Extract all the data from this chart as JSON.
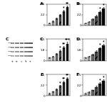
{
  "panels": {
    "A_bar": {
      "label": "A",
      "values": [
        0.5,
        0.9,
        1.5,
        2.2,
        3.0,
        3.8
      ],
      "errors": [
        0.08,
        0.1,
        0.15,
        0.2,
        0.25,
        0.3
      ],
      "stars": [
        "",
        "",
        "",
        "",
        "*",
        "**"
      ],
      "colors": [
        "#cccccc",
        "#999999",
        "#666666",
        "#444444",
        "#222222",
        "#000000"
      ],
      "hatches": [
        "",
        "//",
        "",
        "//",
        "",
        "//"
      ],
      "ylim": [
        0,
        4.5
      ]
    },
    "B_bar": {
      "label": "B",
      "values": [
        0.5,
        0.8,
        1.3,
        2.0,
        2.8,
        3.5
      ],
      "errors": [
        0.08,
        0.1,
        0.13,
        0.18,
        0.25,
        0.3
      ],
      "stars": [
        "",
        "",
        "",
        "",
        "*",
        "*"
      ],
      "colors": [
        "#cccccc",
        "#999999",
        "#666666",
        "#444444",
        "#222222",
        "#000000"
      ],
      "hatches": [
        "",
        "//",
        "",
        "//",
        "",
        "//"
      ],
      "ylim": [
        0,
        4.5
      ]
    },
    "C_bar": {
      "label": "C",
      "values": [
        0.5,
        0.7,
        1.1,
        1.6,
        2.2,
        2.8
      ],
      "errors": [
        0.07,
        0.09,
        0.12,
        0.16,
        0.2,
        0.25
      ],
      "stars": [
        "",
        "",
        "",
        "*",
        "**",
        "***"
      ],
      "colors": [
        "#cccccc",
        "#999999",
        "#666666",
        "#444444",
        "#222222",
        "#000000"
      ],
      "hatches": [
        "",
        "//",
        "",
        "//",
        "",
        "//"
      ],
      "ylim": [
        0,
        3.5
      ]
    },
    "D_bar": {
      "label": "D",
      "values": [
        0.5,
        0.7,
        1.0,
        1.5,
        2.0,
        2.5
      ],
      "errors": [
        0.07,
        0.09,
        0.1,
        0.15,
        0.18,
        0.22
      ],
      "stars": [
        "",
        "",
        "",
        "",
        "*",
        "*"
      ],
      "colors": [
        "#cccccc",
        "#999999",
        "#666666",
        "#444444",
        "#222222",
        "#000000"
      ],
      "hatches": [
        "",
        "//",
        "",
        "//",
        "",
        "//"
      ],
      "ylim": [
        0,
        3.5
      ]
    },
    "E_bar": {
      "label": "E",
      "values": [
        0.5,
        0.9,
        1.4,
        2.1,
        2.9,
        3.6
      ],
      "errors": [
        0.08,
        0.1,
        0.14,
        0.2,
        0.27,
        0.33
      ],
      "stars": [
        "",
        "",
        "",
        "*",
        "**",
        "**"
      ],
      "colors": [
        "#cccccc",
        "#999999",
        "#666666",
        "#444444",
        "#222222",
        "#000000"
      ],
      "hatches": [
        "",
        "//",
        "",
        "//",
        "",
        "//"
      ],
      "ylim": [
        0,
        4.5
      ]
    },
    "F_bar": {
      "label": "F",
      "values": [
        0.5,
        0.8,
        1.2,
        1.9,
        2.6,
        3.2
      ],
      "errors": [
        0.08,
        0.1,
        0.12,
        0.18,
        0.24,
        0.3
      ],
      "stars": [
        "",
        "",
        "",
        "",
        "*",
        "*"
      ],
      "colors": [
        "#cccccc",
        "#999999",
        "#666666",
        "#444444",
        "#222222",
        "#000000"
      ],
      "hatches": [
        "",
        "//",
        "",
        "//",
        "",
        "//"
      ],
      "ylim": [
        0,
        4.5
      ]
    }
  },
  "blot_band_rows": 4,
  "blot_band_cols": 5,
  "blot_shades": [
    [
      0.55,
      0.5,
      0.45,
      0.4,
      0.35
    ],
    [
      0.6,
      0.55,
      0.5,
      0.45,
      0.4
    ],
    [
      0.65,
      0.6,
      0.55,
      0.5,
      0.45
    ],
    [
      0.7,
      0.65,
      0.6,
      0.55,
      0.5
    ]
  ],
  "panel_label_fontsize": 4.5,
  "tick_fontsize": 3,
  "star_fontsize": 3.5,
  "bar_width": 0.65
}
